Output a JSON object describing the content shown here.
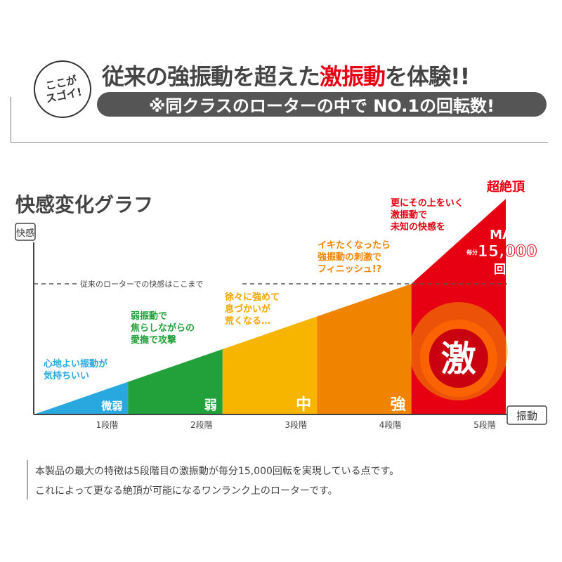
{
  "header": {
    "badge_line1": "ここが",
    "badge_line2": "スゴイ!",
    "headline_pre": "従来の強振動を超えた",
    "headline_highlight": "激振動",
    "headline_post": "を体験!!",
    "subline": "※同クラスのローターの中で NO.1の回転数!"
  },
  "colors": {
    "stage1": "#29a8e0",
    "stage2": "#22a03a",
    "stage3": "#f7b500",
    "stage4": "#f08300",
    "stage5": "#e60012",
    "accent": "#e60012",
    "dark": "#555555"
  },
  "chart_data": {
    "type": "area",
    "title": "快感変化グラフ",
    "ylabel": "快感",
    "xlabel": "振動",
    "categories": [
      "1段階",
      "2段階",
      "3段階",
      "4段階",
      "5段階"
    ],
    "stage_labels": [
      "微弱",
      "弱",
      "中",
      "強",
      "激"
    ],
    "values": [
      25,
      50,
      75,
      100,
      165
    ],
    "reference_line": {
      "value": 100,
      "label": "従来のローターでの快感はここまで"
    },
    "peak_label": "超絶頂",
    "annotations": [
      {
        "lines": [
          "心地よい振動が",
          "気持ちいい"
        ],
        "color": "#29a8e0"
      },
      {
        "lines": [
          "弱振動で",
          "焦らしながらの",
          "愛撫で攻撃"
        ],
        "color": "#22a03a"
      },
      {
        "lines": [
          "徐々に強めて",
          "息づかいが",
          "荒くなる…"
        ],
        "color": "#f7a500"
      },
      {
        "lines": [
          "イキたくなったら",
          "強振動の刺激で",
          "フィニッシュ!?"
        ],
        "color": "#f08300"
      },
      {
        "lines": [
          "更にその上をいく",
          "激振動で",
          "未知の快感を"
        ],
        "color": "#e60012"
      }
    ],
    "max_badge": {
      "max": "MAX",
      "per_minute": "毎分",
      "rpm": "15,000",
      "unit": "回転"
    },
    "grid": false
  },
  "description": {
    "line1": "本製品の最大の特徴は5段階目の激振動が毎分15,000回転を実現している点です。",
    "line2": "これによって更なる絶頂が可能になるワンランク上のローターです。"
  }
}
